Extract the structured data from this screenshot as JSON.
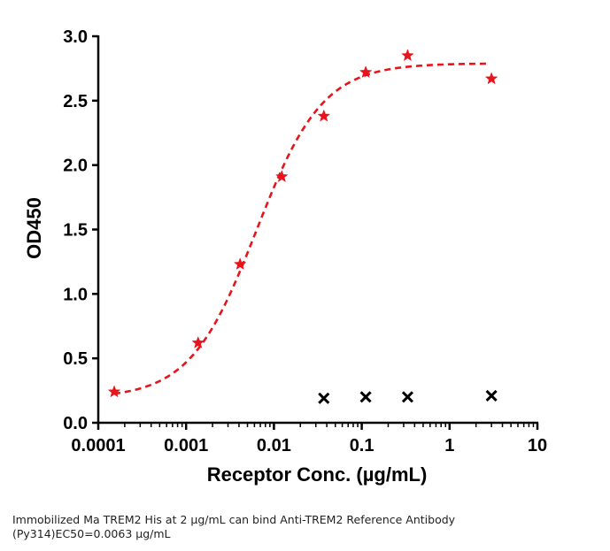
{
  "chart_data": {
    "type": "scatter",
    "title": "",
    "xlabel": "Receptor Conc. (µg/mL)",
    "ylabel": "OD450",
    "x_scale": "log",
    "xlim": [
      0.0001,
      10
    ],
    "ylim": [
      0,
      3.0
    ],
    "x_tick_labels": [
      "0.0001",
      "0.001",
      "0.01",
      "0.1",
      "1",
      "10"
    ],
    "y_tick_labels": [
      "0.0",
      "0.5",
      "1.0",
      "1.5",
      "2.0",
      "2.5",
      "3.0"
    ],
    "grid": false,
    "legend": "none",
    "series": [
      {
        "marker": "star",
        "color": "#e8141b",
        "fit": "4PL dashed",
        "points": [
          {
            "x": 0.000152,
            "y": 0.24
          },
          {
            "x": 0.00137,
            "y": 0.62
          },
          {
            "x": 0.00412,
            "y": 1.23
          },
          {
            "x": 0.0123,
            "y": 1.91
          },
          {
            "x": 0.037,
            "y": 2.38
          },
          {
            "x": 0.111,
            "y": 2.72
          },
          {
            "x": 0.333,
            "y": 2.85
          },
          {
            "x": 3.0,
            "y": 2.67
          }
        ]
      },
      {
        "marker": "x",
        "color": "#000000",
        "points": [
          {
            "x": 0.037,
            "y": 0.19
          },
          {
            "x": 0.111,
            "y": 0.2
          },
          {
            "x": 0.333,
            "y": 0.2
          },
          {
            "x": 3.0,
            "y": 0.21
          }
        ]
      }
    ],
    "fit_curve": {
      "bottom": 0.19,
      "top": 2.79,
      "ec50": 0.0063,
      "hill": 1.15,
      "x_range": [
        0.000152,
        2.6
      ],
      "color": "#e8141b"
    }
  },
  "caption": {
    "line1": "Immobilized Ma TREM2 His at 2  µg/mL can bind  Anti-TREM2 Reference Antibody",
    "line2": "(Py314)EC50=0.0063 µg/mL"
  }
}
